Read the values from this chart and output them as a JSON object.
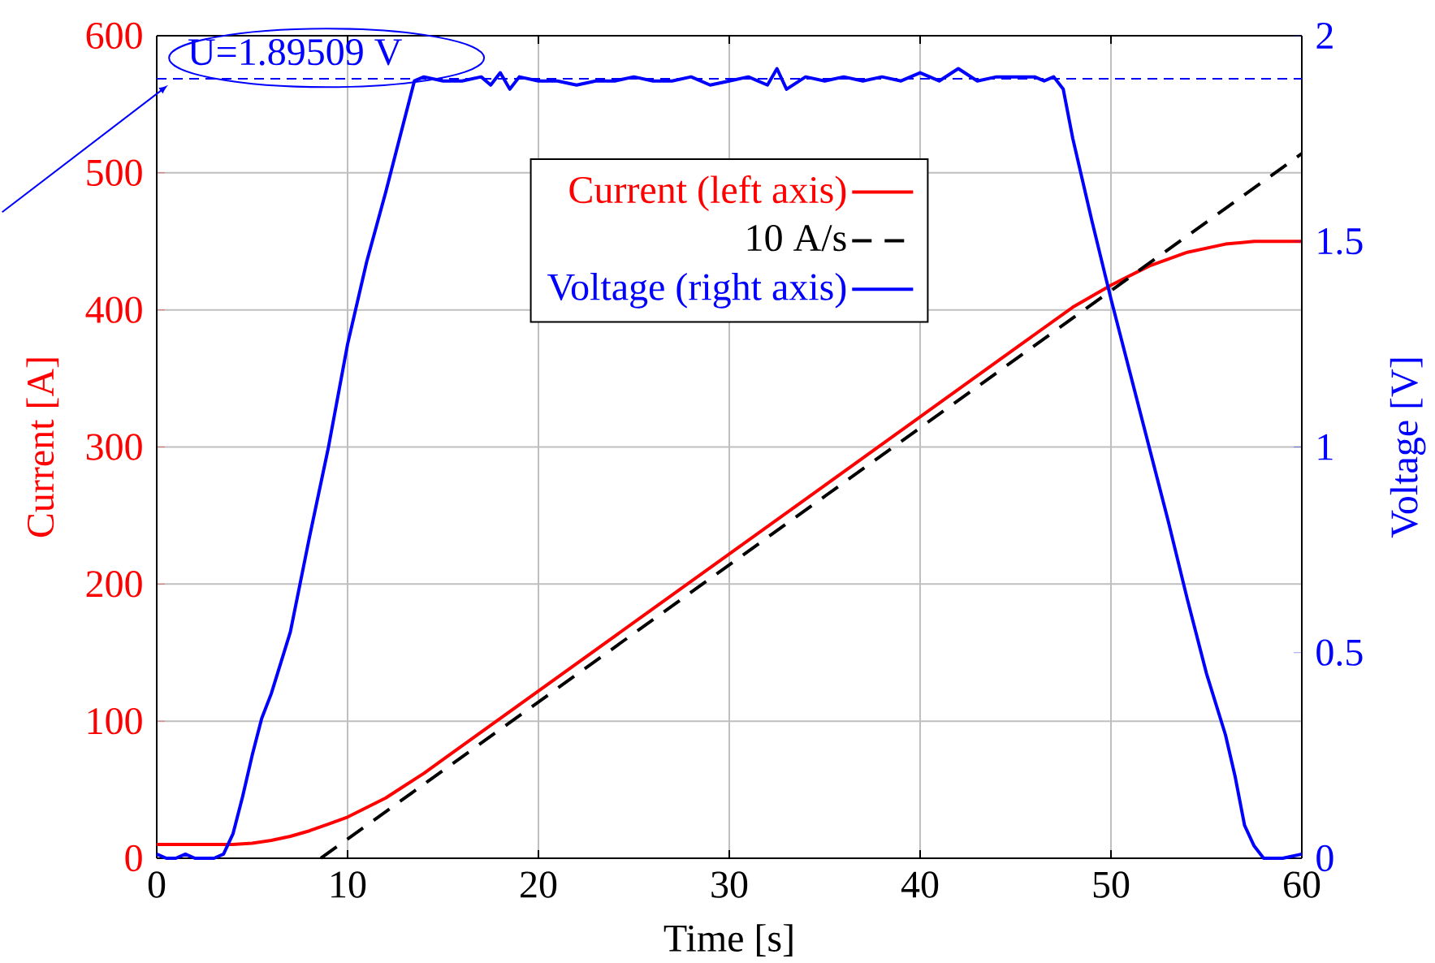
{
  "chart_data": {
    "type": "line",
    "xlabel": "Time [s]",
    "ylabel": "Current [A]",
    "y2label": "Voltage [V]",
    "xlim": [
      0,
      60
    ],
    "xticks": [
      0,
      10,
      20,
      30,
      40,
      50,
      60
    ],
    "ylim": [
      0,
      600
    ],
    "yticks": [
      0,
      100,
      200,
      300,
      400,
      500,
      600
    ],
    "y2lim": [
      0,
      2
    ],
    "y2ticks": [
      0,
      0.5,
      1,
      1.5,
      2
    ],
    "grid": true,
    "legend": "top",
    "line_style": "solid",
    "marker": "none",
    "ref_lines": [
      {
        "axis": "y2",
        "value": 1.89509,
        "label": "U=1.89509 V",
        "color": "#0000ff",
        "line_style": "dashed"
      }
    ],
    "series": [
      {
        "name": "Current (left axis)",
        "color": "#ff0000",
        "axis": "y",
        "x": [
          0,
          3,
          4,
          5,
          6,
          7,
          8,
          9,
          10,
          11,
          12,
          13,
          14,
          15,
          20,
          25,
          30,
          35,
          40,
          45,
          48,
          50,
          52,
          54,
          56,
          57.5,
          60
        ],
        "values": [
          10,
          10,
          10,
          11,
          13,
          16,
          20,
          25,
          30,
          37,
          44,
          53,
          62,
          72,
          122,
          172,
          222,
          272,
          322,
          372,
          402,
          418,
          432,
          442,
          448,
          450,
          450
        ]
      },
      {
        "name": "10 A/s",
        "color": "#000000",
        "axis": "y",
        "line_style": "dashed",
        "x": [
          8.6,
          60
        ],
        "values": [
          0,
          514
        ]
      },
      {
        "name": "Voltage (right axis)",
        "color": "#0000ff",
        "axis": "y2",
        "x": [
          0,
          0.5,
          1,
          1.5,
          2,
          3,
          3.5,
          4,
          4.5,
          5,
          5.5,
          6,
          7,
          8,
          9,
          10,
          11,
          12,
          13,
          13.5,
          14,
          15,
          16,
          17,
          17.5,
          18,
          18.5,
          19,
          20,
          21,
          22,
          23,
          24,
          25,
          26,
          27,
          28,
          29,
          30,
          31,
          32,
          32.5,
          33,
          34,
          35,
          36,
          37,
          38,
          39,
          40,
          41,
          42,
          43,
          44,
          45,
          46,
          46.5,
          47,
          47.5,
          48,
          49,
          50,
          51,
          52,
          53,
          54,
          55,
          56,
          56.5,
          57,
          57.5,
          58,
          59,
          60
        ],
        "values": [
          0.01,
          0,
          0,
          0.01,
          0,
          0,
          0.01,
          0.06,
          0.15,
          0.25,
          0.34,
          0.4,
          0.55,
          0.78,
          1.0,
          1.25,
          1.45,
          1.62,
          1.8,
          1.89,
          1.9,
          1.89,
          1.89,
          1.9,
          1.88,
          1.91,
          1.87,
          1.9,
          1.89,
          1.89,
          1.88,
          1.89,
          1.89,
          1.9,
          1.89,
          1.89,
          1.9,
          1.88,
          1.89,
          1.9,
          1.88,
          1.92,
          1.87,
          1.9,
          1.89,
          1.9,
          1.89,
          1.9,
          1.89,
          1.91,
          1.89,
          1.92,
          1.89,
          1.9,
          1.9,
          1.9,
          1.89,
          1.9,
          1.87,
          1.75,
          1.55,
          1.36,
          1.18,
          1.0,
          0.82,
          0.63,
          0.45,
          0.3,
          0.2,
          0.08,
          0.03,
          0,
          0,
          0.01
        ]
      }
    ]
  }
}
